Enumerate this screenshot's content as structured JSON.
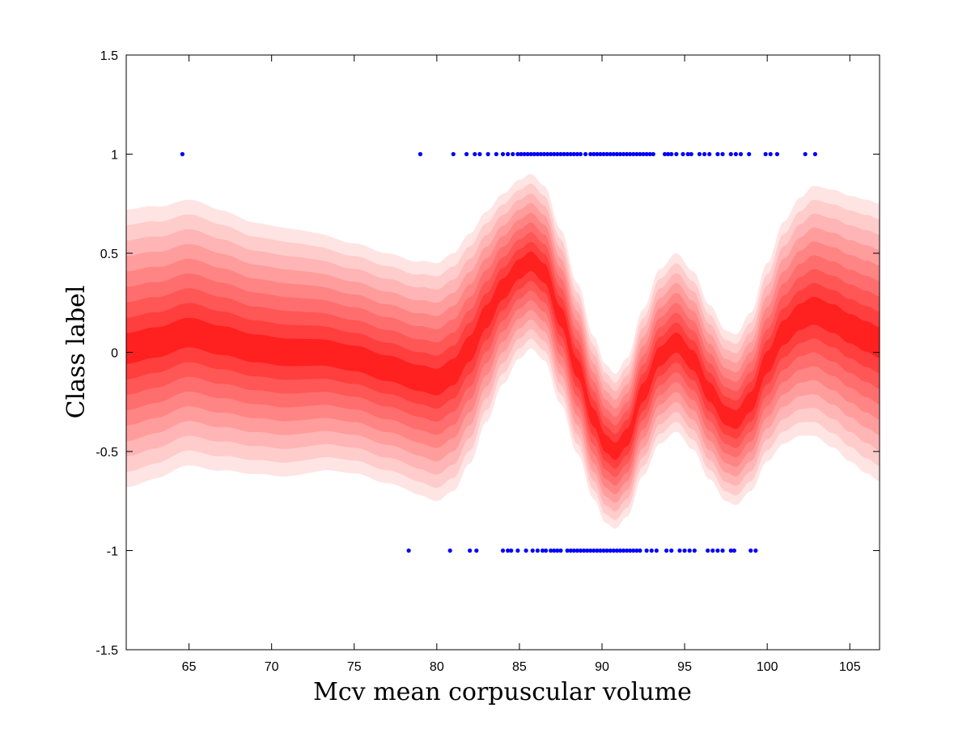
{
  "chart_data": {
    "type": "scatter",
    "xlabel": "Mcv mean corpuscular volume",
    "ylabel": "Class label",
    "xlim": [
      61.2,
      106.8
    ],
    "ylim": [
      -1.5,
      1.5
    ],
    "x_ticks": [
      65,
      70,
      75,
      80,
      85,
      90,
      95,
      100,
      105
    ],
    "y_ticks": [
      -1.5,
      -1,
      -0.5,
      0,
      0.5,
      1,
      1.5
    ],
    "x_tick_labels": [
      "65",
      "70",
      "75",
      "80",
      "85",
      "90",
      "95",
      "100",
      "105"
    ],
    "y_tick_labels": [
      "-1.5",
      "-1",
      "-0.5",
      "0",
      "0.5",
      "1",
      "1.5"
    ],
    "grid": false,
    "marker_color": "#0000ff",
    "band_colors": [
      "#ffe4e4",
      "#ffcccc",
      "#ffb5b5",
      "#ff9d9d",
      "#ff8585",
      "#ff6e6e",
      "#ff5656",
      "#ff3e3e",
      "#ff2020"
    ],
    "mean_curve": {
      "x": [
        61.2,
        63,
        65,
        67,
        69,
        71,
        73,
        75,
        77,
        79,
        80,
        81,
        82,
        83,
        84,
        85,
        85.7,
        86.5,
        87.5,
        88.5,
        89.5,
        90.2,
        90.8,
        91.5,
        92.5,
        93.5,
        94.5,
        95.5,
        96.5,
        97.5,
        98.1,
        99,
        100,
        101,
        102,
        102.8,
        104,
        105,
        106,
        106.8
      ],
      "y": [
        0.02,
        0.05,
        0.1,
        0.06,
        0.02,
        0.0,
        0.0,
        -0.03,
        -0.08,
        -0.13,
        -0.15,
        -0.1,
        0.02,
        0.18,
        0.32,
        0.42,
        0.46,
        0.4,
        0.18,
        -0.08,
        -0.33,
        -0.46,
        -0.5,
        -0.43,
        -0.2,
        -0.02,
        0.05,
        -0.04,
        -0.2,
        -0.32,
        -0.34,
        -0.25,
        -0.05,
        0.1,
        0.18,
        0.21,
        0.17,
        0.12,
        0.08,
        0.05
      ]
    },
    "band_halfwidth": {
      "x": [
        61.2,
        65,
        70,
        75,
        78,
        80,
        81,
        82,
        83,
        84,
        85,
        85.7,
        86.5,
        87.5,
        88.5,
        89.5,
        90.2,
        90.8,
        91.5,
        92.5,
        93.5,
        94.5,
        95.5,
        96.5,
        97.5,
        98.1,
        99,
        100,
        101,
        102,
        102.8,
        104,
        105,
        106,
        106.8
      ],
      "hw": [
        0.7,
        0.67,
        0.63,
        0.58,
        0.58,
        0.6,
        0.6,
        0.58,
        0.53,
        0.48,
        0.45,
        0.44,
        0.44,
        0.44,
        0.43,
        0.41,
        0.4,
        0.39,
        0.4,
        0.42,
        0.44,
        0.45,
        0.45,
        0.44,
        0.43,
        0.43,
        0.45,
        0.5,
        0.56,
        0.6,
        0.63,
        0.65,
        0.67,
        0.69,
        0.7
      ]
    },
    "series": [
      {
        "values": [
          {
            "x": 64.6,
            "y": 1
          },
          {
            "x": 79.0,
            "y": 1
          },
          {
            "x": 81.0,
            "y": 1
          },
          {
            "x": 81.8,
            "y": 1
          },
          {
            "x": 82.3,
            "y": 1
          },
          {
            "x": 82.6,
            "y": 1
          },
          {
            "x": 83.1,
            "y": 1
          },
          {
            "x": 83.6,
            "y": 1
          },
          {
            "x": 84.0,
            "y": 1
          },
          {
            "x": 84.3,
            "y": 1
          },
          {
            "x": 84.6,
            "y": 1
          },
          {
            "x": 84.9,
            "y": 1
          },
          {
            "x": 85.1,
            "y": 1
          },
          {
            "x": 85.3,
            "y": 1
          },
          {
            "x": 85.5,
            "y": 1
          },
          {
            "x": 85.7,
            "y": 1
          },
          {
            "x": 85.9,
            "y": 1
          },
          {
            "x": 86.1,
            "y": 1
          },
          {
            "x": 86.3,
            "y": 1
          },
          {
            "x": 86.5,
            "y": 1
          },
          {
            "x": 86.7,
            "y": 1
          },
          {
            "x": 86.9,
            "y": 1
          },
          {
            "x": 87.1,
            "y": 1
          },
          {
            "x": 87.3,
            "y": 1
          },
          {
            "x": 87.5,
            "y": 1
          },
          {
            "x": 87.7,
            "y": 1
          },
          {
            "x": 87.9,
            "y": 1
          },
          {
            "x": 88.1,
            "y": 1
          },
          {
            "x": 88.3,
            "y": 1
          },
          {
            "x": 88.5,
            "y": 1
          },
          {
            "x": 88.7,
            "y": 1
          },
          {
            "x": 89.0,
            "y": 1
          },
          {
            "x": 89.3,
            "y": 1
          },
          {
            "x": 89.5,
            "y": 1
          },
          {
            "x": 89.7,
            "y": 1
          },
          {
            "x": 89.9,
            "y": 1
          },
          {
            "x": 90.1,
            "y": 1
          },
          {
            "x": 90.3,
            "y": 1
          },
          {
            "x": 90.5,
            "y": 1
          },
          {
            "x": 90.7,
            "y": 1
          },
          {
            "x": 90.9,
            "y": 1
          },
          {
            "x": 91.1,
            "y": 1
          },
          {
            "x": 91.3,
            "y": 1
          },
          {
            "x": 91.5,
            "y": 1
          },
          {
            "x": 91.7,
            "y": 1
          },
          {
            "x": 91.9,
            "y": 1
          },
          {
            "x": 92.1,
            "y": 1
          },
          {
            "x": 92.3,
            "y": 1
          },
          {
            "x": 92.5,
            "y": 1
          },
          {
            "x": 92.7,
            "y": 1
          },
          {
            "x": 92.9,
            "y": 1
          },
          {
            "x": 93.1,
            "y": 1
          },
          {
            "x": 93.8,
            "y": 1
          },
          {
            "x": 94.0,
            "y": 1
          },
          {
            "x": 94.2,
            "y": 1
          },
          {
            "x": 94.5,
            "y": 1
          },
          {
            "x": 94.9,
            "y": 1
          },
          {
            "x": 95.2,
            "y": 1
          },
          {
            "x": 95.4,
            "y": 1
          },
          {
            "x": 95.9,
            "y": 1
          },
          {
            "x": 96.2,
            "y": 1
          },
          {
            "x": 96.5,
            "y": 1
          },
          {
            "x": 97.0,
            "y": 1
          },
          {
            "x": 97.3,
            "y": 1
          },
          {
            "x": 97.8,
            "y": 1
          },
          {
            "x": 98.1,
            "y": 1
          },
          {
            "x": 98.4,
            "y": 1
          },
          {
            "x": 98.9,
            "y": 1
          },
          {
            "x": 99.9,
            "y": 1
          },
          {
            "x": 100.2,
            "y": 1
          },
          {
            "x": 100.6,
            "y": 1
          },
          {
            "x": 102.3,
            "y": 1
          },
          {
            "x": 102.9,
            "y": 1
          },
          {
            "x": 78.3,
            "y": -1
          },
          {
            "x": 80.8,
            "y": -1
          },
          {
            "x": 82.0,
            "y": -1
          },
          {
            "x": 82.4,
            "y": -1
          },
          {
            "x": 84.0,
            "y": -1
          },
          {
            "x": 84.3,
            "y": -1
          },
          {
            "x": 84.5,
            "y": -1
          },
          {
            "x": 84.9,
            "y": -1
          },
          {
            "x": 85.4,
            "y": -1
          },
          {
            "x": 85.8,
            "y": -1
          },
          {
            "x": 86.1,
            "y": -1
          },
          {
            "x": 86.4,
            "y": -1
          },
          {
            "x": 86.6,
            "y": -1
          },
          {
            "x": 86.9,
            "y": -1
          },
          {
            "x": 87.1,
            "y": -1
          },
          {
            "x": 87.3,
            "y": -1
          },
          {
            "x": 87.5,
            "y": -1
          },
          {
            "x": 87.9,
            "y": -1
          },
          {
            "x": 88.1,
            "y": -1
          },
          {
            "x": 88.3,
            "y": -1
          },
          {
            "x": 88.5,
            "y": -1
          },
          {
            "x": 88.7,
            "y": -1
          },
          {
            "x": 88.9,
            "y": -1
          },
          {
            "x": 89.1,
            "y": -1
          },
          {
            "x": 89.3,
            "y": -1
          },
          {
            "x": 89.5,
            "y": -1
          },
          {
            "x": 89.7,
            "y": -1
          },
          {
            "x": 89.9,
            "y": -1
          },
          {
            "x": 90.1,
            "y": -1
          },
          {
            "x": 90.3,
            "y": -1
          },
          {
            "x": 90.5,
            "y": -1
          },
          {
            "x": 90.7,
            "y": -1
          },
          {
            "x": 90.9,
            "y": -1
          },
          {
            "x": 91.1,
            "y": -1
          },
          {
            "x": 91.3,
            "y": -1
          },
          {
            "x": 91.5,
            "y": -1
          },
          {
            "x": 91.7,
            "y": -1
          },
          {
            "x": 91.9,
            "y": -1
          },
          {
            "x": 92.1,
            "y": -1
          },
          {
            "x": 92.3,
            "y": -1
          },
          {
            "x": 92.7,
            "y": -1
          },
          {
            "x": 93.0,
            "y": -1
          },
          {
            "x": 93.3,
            "y": -1
          },
          {
            "x": 93.9,
            "y": -1
          },
          {
            "x": 94.2,
            "y": -1
          },
          {
            "x": 94.7,
            "y": -1
          },
          {
            "x": 95.0,
            "y": -1
          },
          {
            "x": 95.3,
            "y": -1
          },
          {
            "x": 95.6,
            "y": -1
          },
          {
            "x": 96.4,
            "y": -1
          },
          {
            "x": 96.7,
            "y": -1
          },
          {
            "x": 97.0,
            "y": -1
          },
          {
            "x": 97.3,
            "y": -1
          },
          {
            "x": 97.8,
            "y": -1
          },
          {
            "x": 98.0,
            "y": -1
          },
          {
            "x": 99.0,
            "y": -1
          },
          {
            "x": 99.3,
            "y": -1
          }
        ]
      }
    ]
  }
}
